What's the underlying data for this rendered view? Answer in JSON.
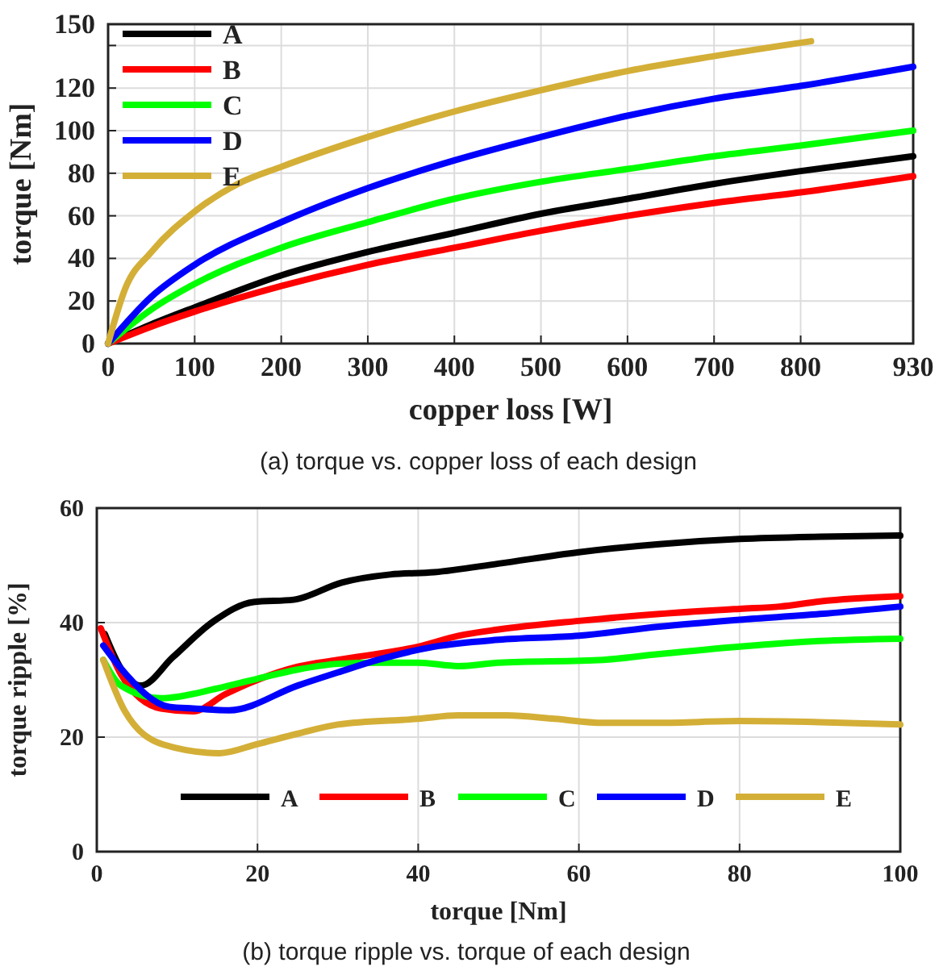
{
  "chart_data": [
    {
      "type": "line",
      "xlabel": "copper loss [W]",
      "ylabel": "torque [Nm]",
      "annotations": [
        "(a) torque vs. copper loss of each design"
      ],
      "xlim": [
        0,
        930
      ],
      "ylim": [
        0,
        150
      ],
      "xticks": [
        0,
        100,
        200,
        300,
        400,
        500,
        600,
        700,
        800,
        930
      ],
      "yticks": [
        0,
        20,
        40,
        60,
        80,
        100,
        120,
        {
          "value": 140,
          "label": null
        },
        150
      ],
      "grid": true,
      "legend": "top left",
      "line_style": "solid",
      "marker": "none",
      "series": [
        {
          "name": "A",
          "color": "#000000",
          "x": [
            0,
            50,
            100,
            200,
            300,
            400,
            500,
            600,
            700,
            800,
            930
          ],
          "values": [
            0,
            9,
            17,
            32,
            43,
            52,
            61,
            68,
            75,
            81,
            88
          ]
        },
        {
          "name": "B",
          "color": "#ff0000",
          "x": [
            0,
            50,
            100,
            200,
            300,
            400,
            500,
            600,
            700,
            800,
            930
          ],
          "values": [
            0,
            8,
            15,
            27,
            37,
            45,
            53,
            60,
            66,
            71,
            78.6
          ]
        },
        {
          "name": "C",
          "color": "#00ff00",
          "x": [
            0,
            50,
            100,
            200,
            300,
            400,
            500,
            600,
            700,
            800,
            930
          ],
          "values": [
            0,
            16,
            28,
            45,
            57,
            68,
            76,
            82,
            88,
            93,
            100
          ]
        },
        {
          "name": "D",
          "color": "#0000ff",
          "x": [
            0,
            50,
            100,
            200,
            300,
            400,
            500,
            600,
            700,
            800,
            930
          ],
          "values": [
            0,
            22,
            37,
            57,
            73,
            86,
            97,
            107,
            115,
            121,
            130
          ]
        },
        {
          "name": "E",
          "color": "#d4af37",
          "x": [
            0,
            20,
            50,
            100,
            150,
            200,
            300,
            400,
            500,
            600,
            700,
            812
          ],
          "values": [
            0,
            26,
            43,
            62,
            75,
            83,
            97,
            109,
            119,
            128,
            135,
            142
          ]
        }
      ]
    },
    {
      "type": "line",
      "xlabel": "torque [Nm]",
      "ylabel": "torque ripple [%]",
      "annotations": [
        "(b) torque ripple vs. torque of each design"
      ],
      "xlim": [
        0,
        100
      ],
      "ylim": [
        0,
        60
      ],
      "xticks": [
        0,
        20,
        40,
        60,
        80,
        100
      ],
      "yticks": [
        0,
        20,
        40,
        60
      ],
      "grid": true,
      "legend": "bottom",
      "line_style": "solid",
      "marker": "none",
      "series": [
        {
          "name": "A",
          "color": "#000000",
          "x": [
            1,
            3,
            5.5,
            9.5,
            14.5,
            19.5,
            24.5,
            30.5,
            36.5,
            42,
            50,
            60,
            70,
            80,
            90,
            100
          ],
          "values": [
            38,
            32,
            29,
            34,
            40.2,
            43.6,
            44,
            47,
            48.4,
            48.8,
            50.3,
            52.3,
            53.7,
            54.6,
            55,
            55.2
          ]
        },
        {
          "name": "B",
          "color": "#ff0000",
          "x": [
            0.5,
            3,
            8,
            12,
            16,
            20,
            25,
            30,
            40,
            45,
            50,
            60,
            70,
            80,
            85,
            90,
            100
          ],
          "values": [
            39,
            31,
            25,
            24.5,
            27.5,
            30,
            32.3,
            33.5,
            35.8,
            37.7,
            38.8,
            40.3,
            41.5,
            42.4,
            42.8,
            43.7,
            44.6
          ]
        },
        {
          "name": "C",
          "color": "#00ff00",
          "x": [
            0.8,
            3,
            8,
            15,
            20,
            25,
            30,
            35,
            40,
            45,
            50,
            63,
            70,
            80,
            90,
            100
          ],
          "values": [
            33.5,
            29,
            26.8,
            28.5,
            30.2,
            31.8,
            32.8,
            33,
            33,
            32.4,
            33,
            33.5,
            34.5,
            35.8,
            36.8,
            37.2
          ]
        },
        {
          "name": "D",
          "color": "#0000ff",
          "x": [
            0.8,
            3,
            9,
            12,
            16.5,
            25,
            30,
            35,
            42,
            50,
            60,
            70,
            80,
            90,
            100
          ],
          "values": [
            36,
            32,
            25.3,
            25,
            24.7,
            29,
            31.3,
            33.5,
            35.8,
            37,
            37.7,
            39.3,
            40.5,
            41.5,
            42.8
          ]
        },
        {
          "name": "E",
          "color": "#d4af37",
          "x": [
            0.8,
            3.5,
            8.3,
            15.3,
            20,
            25,
            30,
            40,
            45,
            51,
            57,
            63,
            70,
            80,
            90,
            100
          ],
          "values": [
            33.5,
            24.5,
            18.7,
            17.2,
            18.8,
            20.6,
            22.2,
            23.2,
            23.8,
            23.8,
            23.2,
            22.5,
            22.5,
            22.8,
            22.6,
            22.2
          ]
        }
      ]
    }
  ]
}
